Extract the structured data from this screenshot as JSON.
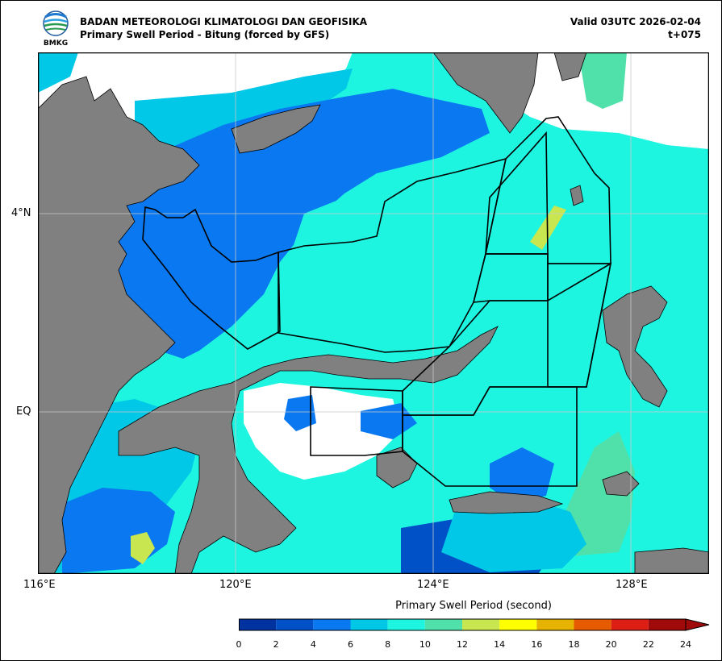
{
  "header": {
    "agency": "BADAN METEOROLOGI KLIMATOLOGI DAN GEOFISIKA",
    "product": "Primary Swell Period - Bitung (forced by GFS)",
    "valid": "Valid 03UTC 2026-02-04",
    "lead": "t+075",
    "logo_text": "BMKG"
  },
  "axes": {
    "x_ticks": [
      "116°E",
      "120°E",
      "124°E",
      "128°E"
    ],
    "y_ticks": [
      "4°N",
      "EQ"
    ]
  },
  "colorbar": {
    "title": "Primary Swell Period (second)",
    "ticks": [
      "0",
      "2",
      "4",
      "6",
      "8",
      "10",
      "12",
      "14",
      "16",
      "18",
      "20",
      "22",
      "24"
    ],
    "colors": [
      "#0032a0",
      "#0050c8",
      "#0a78f0",
      "#00c8e6",
      "#1ef5e1",
      "#50e1aa",
      "#c8e650",
      "#ffff00",
      "#e6b400",
      "#e65a00",
      "#dc1e14",
      "#a00a0a"
    ]
  },
  "map_colors": {
    "land": "#808080",
    "nodata": "#ffffff",
    "boundary": "#000000",
    "grid": "#c8c8c8"
  }
}
